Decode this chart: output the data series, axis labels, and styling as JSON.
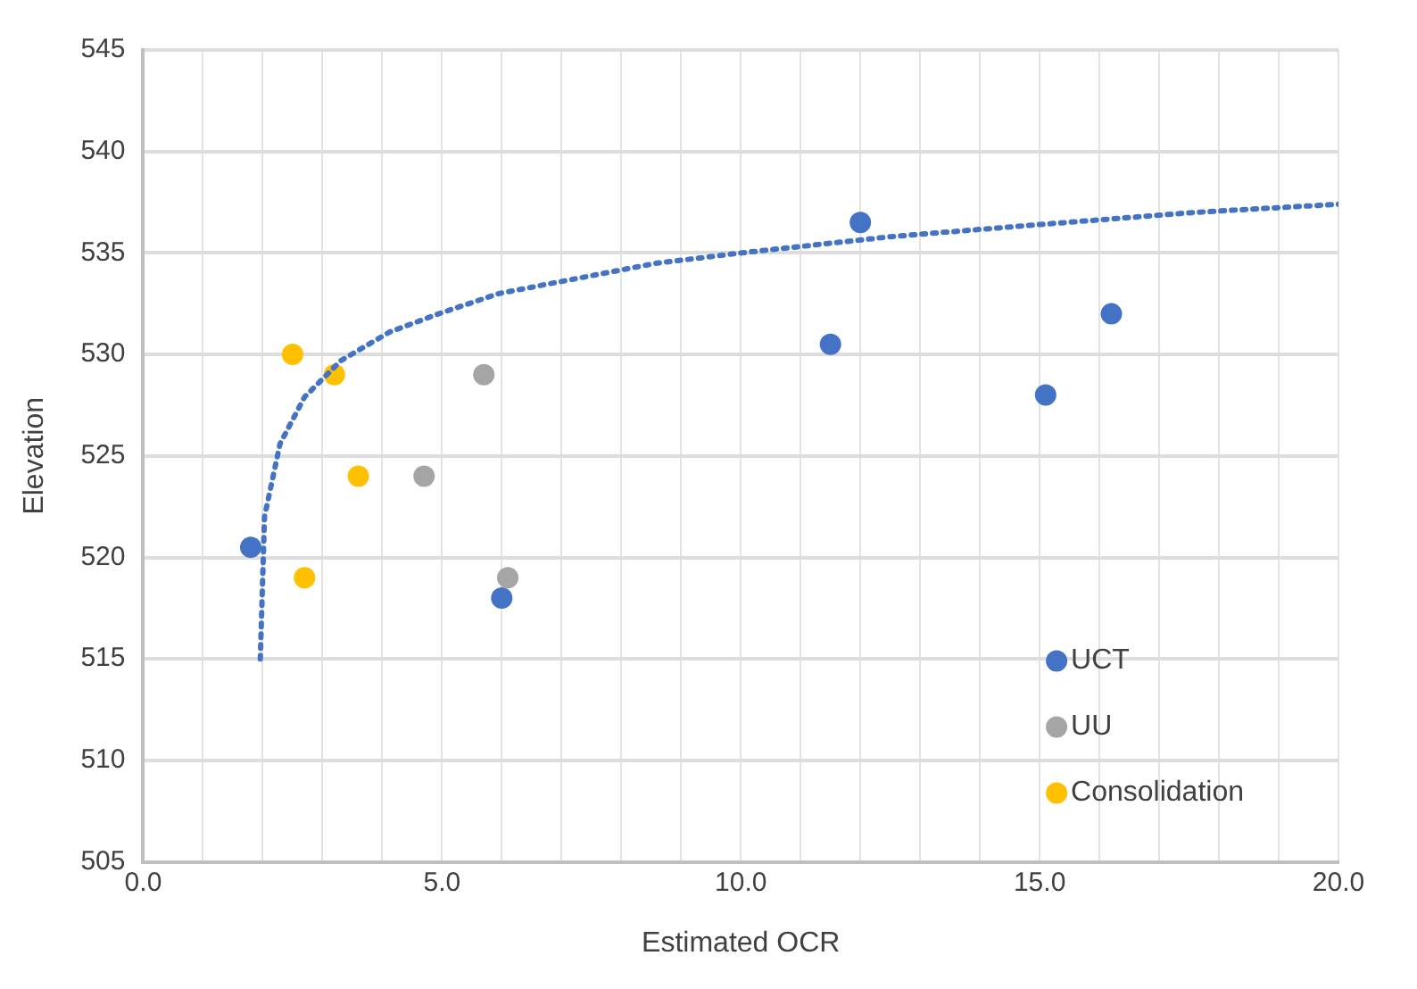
{
  "chart_data": {
    "type": "scatter",
    "xlabel": "Estimated OCR",
    "ylabel": "Elevation",
    "xlim": [
      0,
      20
    ],
    "ylim": [
      505,
      545
    ],
    "xticks": [
      {
        "value": 0,
        "label": "0.0"
      },
      {
        "value": 1,
        "label": null
      },
      {
        "value": 2,
        "label": null
      },
      {
        "value": 3,
        "label": null
      },
      {
        "value": 4,
        "label": null
      },
      {
        "value": 5,
        "label": "5.0"
      },
      {
        "value": 6,
        "label": null
      },
      {
        "value": 7,
        "label": null
      },
      {
        "value": 8,
        "label": null
      },
      {
        "value": 9,
        "label": null
      },
      {
        "value": 10,
        "label": "10.0"
      },
      {
        "value": 11,
        "label": null
      },
      {
        "value": 12,
        "label": null
      },
      {
        "value": 13,
        "label": null
      },
      {
        "value": 14,
        "label": null
      },
      {
        "value": 15,
        "label": "15.0"
      },
      {
        "value": 16,
        "label": null
      },
      {
        "value": 17,
        "label": null
      },
      {
        "value": 18,
        "label": null
      },
      {
        "value": 19,
        "label": null
      },
      {
        "value": 20,
        "label": "20.0"
      }
    ],
    "yticks": [
      505,
      510,
      515,
      520,
      525,
      530,
      535,
      540,
      545
    ],
    "grid": true,
    "legend": "bottom right",
    "marker": "circle",
    "series": [
      {
        "name": "UCT",
        "color": "#4472c4",
        "x": [
          1.8,
          12.0,
          11.5,
          16.2,
          15.1,
          6.0
        ],
        "values": [
          520.5,
          536.5,
          530.5,
          532,
          528,
          518
        ]
      },
      {
        "name": "UU",
        "color": "#a5a5a5",
        "x": [
          5.7,
          4.7,
          6.1
        ],
        "values": [
          529,
          524,
          519
        ]
      },
      {
        "name": "Consolidation",
        "color": "#ffc000",
        "x": [
          2.5,
          3.2,
          3.6,
          2.7
        ],
        "values": [
          530,
          529,
          524,
          519
        ]
      },
      {
        "type": "line",
        "color": "#4472c4",
        "line_style": "dotted",
        "marker": "none",
        "x": [
          1.96,
          2.03,
          2.29,
          2.7,
          3.31,
          4.12,
          4.94,
          5.95,
          7.18,
          8.6,
          10.0,
          12.5,
          15.0,
          17.6,
          20.0
        ],
        "values": [
          515.0,
          522.0,
          525.6,
          527.9,
          529.7,
          531.1,
          532.0,
          533.0,
          533.7,
          534.5,
          535.0,
          535.8,
          536.4,
          537.0,
          537.4
        ]
      }
    ]
  }
}
